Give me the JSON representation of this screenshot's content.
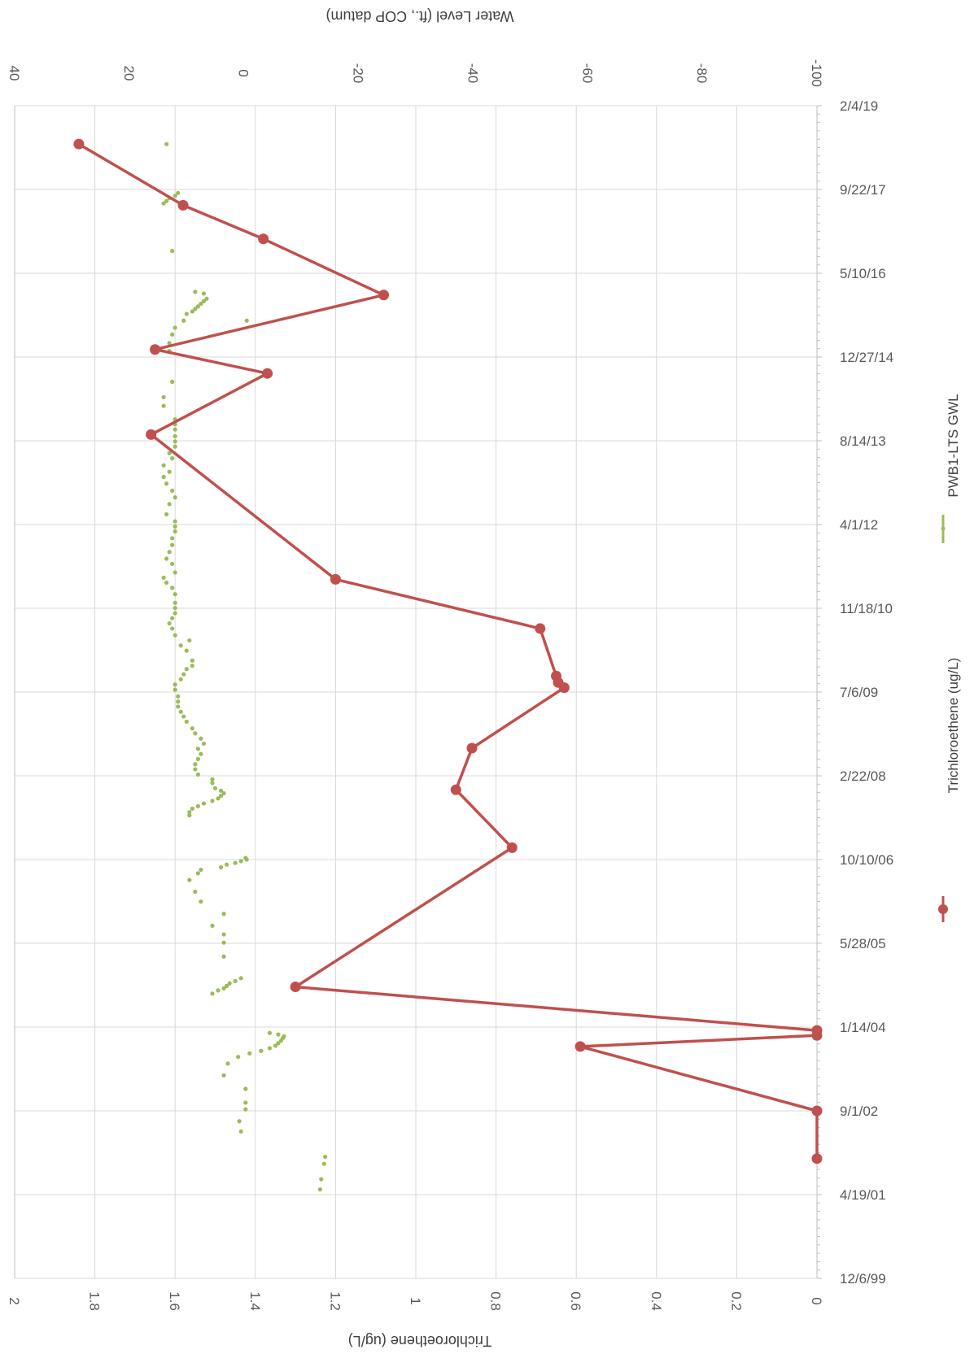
{
  "chart_data": {
    "type": "line",
    "orientation": "rotated",
    "x_axis": {
      "type": "date",
      "min": "1999-12-06",
      "max": "2019-02-04",
      "tick_labels": [
        "12/6/99",
        "4/19/01",
        "9/1/02",
        "1/14/04",
        "5/28/05",
        "10/10/06",
        "2/22/08",
        "7/6/09",
        "11/18/10",
        "4/1/12",
        "8/14/13",
        "12/27/14",
        "5/10/16",
        "9/22/17",
        "2/4/19"
      ],
      "tick_dates": [
        "1999-12-06",
        "2001-04-19",
        "2002-09-01",
        "2004-01-14",
        "2005-05-28",
        "2006-10-10",
        "2008-02-22",
        "2009-07-06",
        "2010-11-18",
        "2012-04-01",
        "2013-08-14",
        "2014-12-27",
        "2016-05-10",
        "2017-09-22",
        "2019-02-04"
      ]
    },
    "y_axis_primary": {
      "label": "Trichloroethene (ug/L)",
      "range": [
        0,
        2
      ],
      "tick_labels": [
        "0",
        "0.2",
        "0.4",
        "0.6",
        "0.8",
        "1",
        "1.2",
        "1.4",
        "1.6",
        "1.8",
        "2"
      ],
      "tick_values": [
        0,
        0.2,
        0.4,
        0.6,
        0.8,
        1,
        1.2,
        1.4,
        1.6,
        1.8,
        2
      ]
    },
    "y_axis_secondary": {
      "label": "Water Level (ft., COP datum)",
      "range": [
        -100,
        40
      ],
      "tick_labels": [
        "-100",
        "-80",
        "-60",
        "-40",
        "-20",
        "0",
        "20",
        "40"
      ],
      "tick_values": [
        -100,
        -80,
        -60,
        -40,
        -20,
        0,
        20,
        40
      ]
    },
    "grid": true,
    "legend_position": "right",
    "colors": {
      "tce": "#c0504d",
      "gwl": "#9bbb59",
      "grid": "#d9d9d9",
      "axis": "#bfbfbf"
    },
    "series": [
      {
        "name": "Trichloroethene (ug/L)",
        "axis": "primary",
        "style": "line-markers",
        "points": [
          [
            "2001-11-20",
            0.0
          ],
          [
            "2002-09-01",
            0.0
          ],
          [
            "2003-09-20",
            0.59
          ],
          [
            "2003-11-25",
            0.0
          ],
          [
            "2003-12-25",
            0.0
          ],
          [
            "2004-09-10",
            1.3
          ],
          [
            "2006-12-20",
            0.76
          ],
          [
            "2007-12-01",
            0.9
          ],
          [
            "2008-08-05",
            0.86
          ],
          [
            "2009-08-01",
            0.63
          ],
          [
            "2009-09-01",
            0.645
          ],
          [
            "2009-10-10",
            0.65
          ],
          [
            "2010-07-20",
            0.69
          ],
          [
            "2011-05-10",
            1.2
          ],
          [
            "2013-09-20",
            1.66
          ],
          [
            "2014-09-20",
            1.37
          ],
          [
            "2015-02-10",
            1.65
          ],
          [
            "2016-01-01",
            1.08
          ],
          [
            "2016-12-01",
            1.38
          ],
          [
            "2017-06-20",
            1.58
          ],
          [
            "2018-06-20",
            1.84
          ]
        ]
      },
      {
        "name": "PWB1-LTS GWL",
        "axis": "secondary",
        "style": "markers",
        "points": [
          [
            "2001-05-20",
            -13.3
          ],
          [
            "2001-07-20",
            -13.5
          ],
          [
            "2001-10-20",
            -14.0
          ],
          [
            "2001-12-01",
            -14.2
          ],
          [
            "2002-05-01",
            0.5
          ],
          [
            "2002-07-01",
            0.8
          ],
          [
            "2002-09-10",
            -0.3
          ],
          [
            "2002-10-20",
            -0.3
          ],
          [
            "2003-01-10",
            -0.3
          ],
          [
            "2003-04-01",
            3.5
          ],
          [
            "2003-06-10",
            2.8
          ],
          [
            "2003-07-20",
            1.0
          ],
          [
            "2003-08-10",
            -1.0
          ],
          [
            "2003-08-25",
            -3.0
          ],
          [
            "2003-09-10",
            -4.5
          ],
          [
            "2003-09-25",
            -5.5
          ],
          [
            "2003-10-10",
            -6.0
          ],
          [
            "2003-10-25",
            -6.5
          ],
          [
            "2003-11-10",
            -6.8
          ],
          [
            "2003-11-20",
            -7.0
          ],
          [
            "2003-12-01",
            -6.0
          ],
          [
            "2003-12-10",
            -4.5
          ],
          [
            "2004-08-01",
            5.5
          ],
          [
            "2004-08-20",
            4.5
          ],
          [
            "2004-09-01",
            3.5
          ],
          [
            "2004-09-15",
            3.0
          ],
          [
            "2004-10-01",
            2.5
          ],
          [
            "2004-10-15",
            1.5
          ],
          [
            "2004-11-01",
            0.5
          ],
          [
            "2005-03-10",
            3.5
          ],
          [
            "2005-06-01",
            3.5
          ],
          [
            "2005-07-20",
            3.5
          ],
          [
            "2005-09-10",
            5.5
          ],
          [
            "2005-11-20",
            3.5
          ],
          [
            "2006-02-01",
            7.5
          ],
          [
            "2006-04-01",
            8.5
          ],
          [
            "2006-06-10",
            9.5
          ],
          [
            "2006-07-20",
            8.0
          ],
          [
            "2006-08-10",
            7.5
          ],
          [
            "2006-08-25",
            4.0
          ],
          [
            "2006-09-10",
            3.0
          ],
          [
            "2006-09-20",
            1.5
          ],
          [
            "2006-10-01",
            0.5
          ],
          [
            "2006-10-10",
            -0.5
          ],
          [
            "2006-10-20",
            -0.3
          ],
          [
            "2007-07-01",
            9.5
          ],
          [
            "2007-07-20",
            9.5
          ],
          [
            "2007-08-10",
            9.0
          ],
          [
            "2007-08-25",
            8.0
          ],
          [
            "2007-09-10",
            7.0
          ],
          [
            "2007-09-25",
            5.5
          ],
          [
            "2007-10-10",
            4.5
          ],
          [
            "2007-10-25",
            4.0
          ],
          [
            "2007-11-10",
            3.5
          ],
          [
            "2007-11-25",
            4.0
          ],
          [
            "2007-12-10",
            5.0
          ],
          [
            "2008-01-10",
            5.5
          ],
          [
            "2008-02-01",
            5.5
          ],
          [
            "2008-03-01",
            8.0
          ],
          [
            "2008-04-01",
            8.5
          ],
          [
            "2008-05-01",
            8.5
          ],
          [
            "2008-06-01",
            8.0
          ],
          [
            "2008-07-01",
            7.5
          ],
          [
            "2008-08-01",
            8.0
          ],
          [
            "2008-09-01",
            7.0
          ],
          [
            "2008-10-01",
            7.5
          ],
          [
            "2008-11-01",
            8.5
          ],
          [
            "2008-12-01",
            9.0
          ],
          [
            "2009-01-10",
            10.0
          ],
          [
            "2009-02-10",
            10.5
          ],
          [
            "2009-03-10",
            11.0
          ],
          [
            "2009-04-10",
            11.5
          ],
          [
            "2009-05-10",
            11.5
          ],
          [
            "2009-06-10",
            11.5
          ],
          [
            "2009-07-20",
            12.0
          ],
          [
            "2009-08-20",
            12.0
          ],
          [
            "2009-09-20",
            11.0
          ],
          [
            "2009-10-20",
            10.5
          ],
          [
            "2009-11-20",
            10.0
          ],
          [
            "2009-12-10",
            9.0
          ],
          [
            "2010-01-10",
            9.0
          ],
          [
            "2010-03-10",
            10.0
          ],
          [
            "2010-04-10",
            11.0
          ],
          [
            "2010-05-10",
            9.5
          ],
          [
            "2010-06-10",
            12.0
          ],
          [
            "2010-07-20",
            12.5
          ],
          [
            "2010-08-20",
            13.0
          ],
          [
            "2010-09-20",
            12.5
          ],
          [
            "2010-10-20",
            12.0
          ],
          [
            "2010-11-20",
            12.0
          ],
          [
            "2010-12-20",
            12.0
          ],
          [
            "2011-02-10",
            12.0
          ],
          [
            "2011-03-20",
            12.5
          ],
          [
            "2011-04-20",
            13.5
          ],
          [
            "2011-05-20",
            14.0
          ],
          [
            "2011-06-20",
            12.0
          ],
          [
            "2011-08-10",
            12.5
          ],
          [
            "2011-09-10",
            13.5
          ],
          [
            "2011-10-20",
            13.0
          ],
          [
            "2011-12-01",
            12.5
          ],
          [
            "2012-01-10",
            12.5
          ],
          [
            "2012-02-20",
            12.0
          ],
          [
            "2012-03-20",
            12.0
          ],
          [
            "2012-04-20",
            12.0
          ],
          [
            "2012-06-01",
            13.5
          ],
          [
            "2012-08-01",
            13.0
          ],
          [
            "2012-09-10",
            12.0
          ],
          [
            "2012-10-20",
            12.5
          ],
          [
            "2012-12-01",
            13.5
          ],
          [
            "2013-01-10",
            14.0
          ],
          [
            "2013-02-10",
            13.0
          ],
          [
            "2013-03-20",
            14.0
          ],
          [
            "2013-05-01",
            12.5
          ],
          [
            "2013-06-01",
            13.0
          ],
          [
            "2013-07-10",
            12.0
          ],
          [
            "2013-08-10",
            12.0
          ],
          [
            "2013-09-10",
            12.0
          ],
          [
            "2013-10-20",
            12.0
          ],
          [
            "2013-11-20",
            12.0
          ],
          [
            "2013-12-20",
            12.0
          ],
          [
            "2014-03-10",
            14.0
          ],
          [
            "2014-05-01",
            14.0
          ],
          [
            "2014-08-01",
            12.5
          ],
          [
            "2015-02-01",
            13.0
          ],
          [
            "2015-03-20",
            13.0
          ],
          [
            "2015-05-10",
            12.5
          ],
          [
            "2015-06-20",
            12.0
          ],
          [
            "2015-08-01",
            10.5
          ],
          [
            "2015-09-10",
            10.0
          ],
          [
            "2015-09-25",
            9.0
          ],
          [
            "2015-10-10",
            8.5
          ],
          [
            "2015-10-25",
            8.0
          ],
          [
            "2015-11-10",
            7.5
          ],
          [
            "2015-11-25",
            7.0
          ],
          [
            "2015-12-10",
            6.5
          ],
          [
            "2016-01-10",
            7.0
          ],
          [
            "2016-01-20",
            8.5
          ],
          [
            "2015-08-01",
            -0.5
          ],
          [
            "2016-09-20",
            12.5
          ],
          [
            "2017-07-01",
            14.0
          ],
          [
            "2017-07-15",
            13.5
          ],
          [
            "2017-08-01",
            13.0
          ],
          [
            "2017-08-15",
            12.0
          ],
          [
            "2017-09-01",
            11.5
          ],
          [
            "2018-06-20",
            13.5
          ]
        ]
      }
    ]
  }
}
